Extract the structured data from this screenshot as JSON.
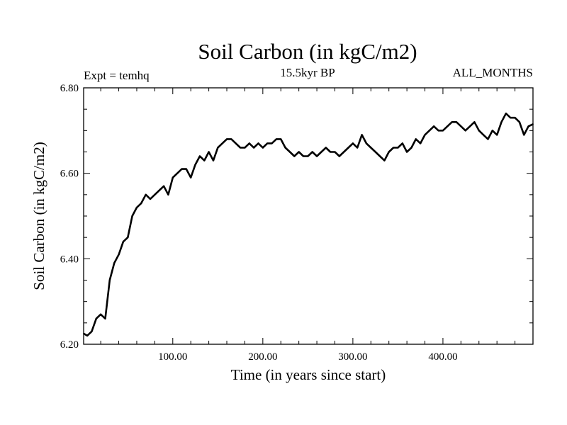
{
  "chart_data": {
    "type": "line",
    "title": "Soil Carbon (in kgC/m2)",
    "subtitle": "15.5kyr BP",
    "left_label": "Expt = temhq",
    "right_label": "ALL_MONTHS",
    "xlabel": "Time (in years since start)",
    "ylabel": "Soil Carbon (in kgC/m2)",
    "xlim": [
      1,
      500
    ],
    "ylim": [
      6.2,
      6.8
    ],
    "x_ticks": [
      100,
      200,
      300,
      400
    ],
    "x_tick_labels": [
      "100.00",
      "200.00",
      "300.00",
      "400.00"
    ],
    "y_ticks": [
      6.2,
      6.4,
      6.6,
      6.8
    ],
    "y_tick_labels": [
      "6.20",
      "6.40",
      "6.60",
      "6.80"
    ],
    "series": [
      {
        "name": "Soil Carbon",
        "x": [
          1,
          5,
          10,
          15,
          20,
          25,
          30,
          35,
          40,
          45,
          50,
          55,
          60,
          65,
          70,
          75,
          80,
          85,
          90,
          95,
          100,
          105,
          110,
          115,
          120,
          125,
          130,
          135,
          140,
          145,
          150,
          155,
          160,
          165,
          170,
          175,
          180,
          185,
          190,
          195,
          200,
          205,
          210,
          215,
          220,
          225,
          230,
          235,
          240,
          245,
          250,
          255,
          260,
          265,
          270,
          275,
          280,
          285,
          290,
          295,
          300,
          305,
          310,
          315,
          320,
          325,
          330,
          335,
          340,
          345,
          350,
          355,
          360,
          365,
          370,
          375,
          380,
          385,
          390,
          395,
          400,
          405,
          410,
          415,
          420,
          425,
          430,
          435,
          440,
          445,
          450,
          455,
          460,
          465,
          470,
          475,
          480,
          485,
          490,
          495,
          500
        ],
        "values": [
          6.225,
          6.22,
          6.23,
          6.26,
          6.27,
          6.26,
          6.35,
          6.39,
          6.41,
          6.44,
          6.45,
          6.5,
          6.52,
          6.53,
          6.55,
          6.54,
          6.55,
          6.56,
          6.57,
          6.55,
          6.59,
          6.6,
          6.61,
          6.61,
          6.59,
          6.62,
          6.64,
          6.63,
          6.65,
          6.63,
          6.66,
          6.67,
          6.68,
          6.68,
          6.67,
          6.66,
          6.66,
          6.67,
          6.66,
          6.67,
          6.66,
          6.67,
          6.67,
          6.68,
          6.68,
          6.66,
          6.65,
          6.64,
          6.65,
          6.64,
          6.64,
          6.65,
          6.64,
          6.65,
          6.66,
          6.65,
          6.65,
          6.64,
          6.65,
          6.66,
          6.67,
          6.66,
          6.69,
          6.67,
          6.66,
          6.65,
          6.64,
          6.63,
          6.65,
          6.66,
          6.66,
          6.67,
          6.65,
          6.66,
          6.68,
          6.67,
          6.69,
          6.7,
          6.71,
          6.7,
          6.7,
          6.71,
          6.72,
          6.72,
          6.71,
          6.7,
          6.71,
          6.72,
          6.7,
          6.69,
          6.68,
          6.7,
          6.69,
          6.72,
          6.74,
          6.73,
          6.73,
          6.72,
          6.69,
          6.71,
          6.715
        ]
      }
    ]
  }
}
